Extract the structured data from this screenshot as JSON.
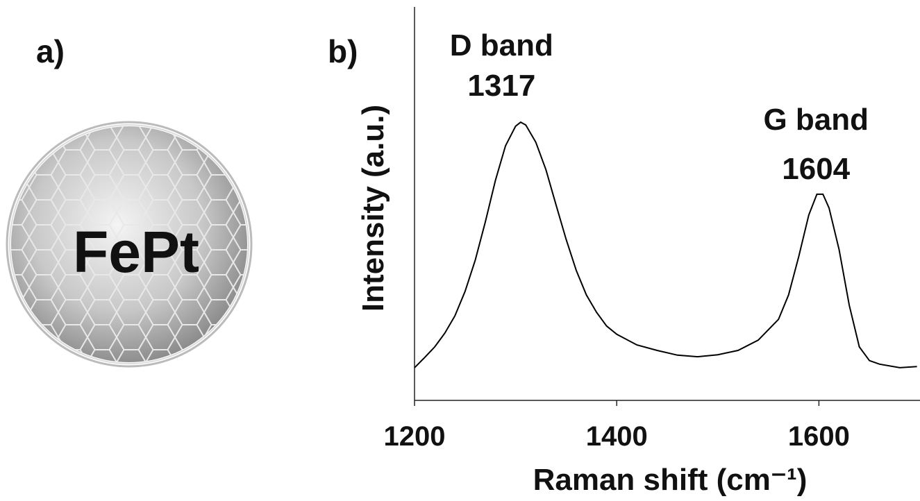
{
  "panel_labels": [
    "a)",
    "b)"
  ],
  "illustration": {
    "label": "FePt"
  },
  "chart_data": {
    "type": "line",
    "xlabel": "Raman shift (cm⁻¹)",
    "ylabel": "Intensity (a.u.)",
    "annotations": [
      {
        "lines": [
          "D band",
          "1317"
        ],
        "x": 1317
      },
      {
        "lines": [
          "G band",
          "1604"
        ],
        "x": 1604
      }
    ],
    "xlim": [
      1200,
      1700
    ],
    "xticks": [
      1200,
      1400,
      1600
    ],
    "ylim": [
      0,
      100
    ],
    "series": [
      {
        "color": "#000000",
        "x": [
          1200,
          1210,
          1220,
          1230,
          1240,
          1250,
          1260,
          1270,
          1280,
          1290,
          1300,
          1305,
          1310,
          1320,
          1330,
          1340,
          1350,
          1360,
          1370,
          1380,
          1390,
          1400,
          1420,
          1440,
          1460,
          1480,
          1500,
          1520,
          1540,
          1560,
          1570,
          1580,
          1590,
          1598,
          1604,
          1610,
          1620,
          1630,
          1640,
          1650,
          1660,
          1680,
          1697
        ],
        "values": [
          8.3,
          10.9,
          13.6,
          17.1,
          21.5,
          27.7,
          35.6,
          45.3,
          55.9,
          64.7,
          69.7,
          70.7,
          70,
          65.6,
          58.6,
          49.7,
          40.9,
          33,
          26.8,
          22.4,
          18.9,
          16.8,
          14.1,
          12.7,
          11.5,
          11.1,
          11.6,
          12.7,
          15.3,
          20.6,
          26.8,
          36.5,
          47.1,
          52.4,
          52.4,
          48.9,
          38.3,
          24.2,
          13.6,
          10.1,
          9.2,
          8.3,
          8.6
        ]
      }
    ]
  }
}
